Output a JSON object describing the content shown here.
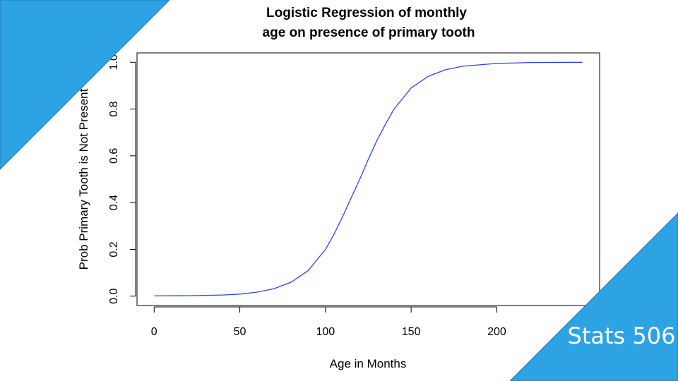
{
  "theme": {
    "accent": "#2ea3e3",
    "accent_border": "#1e78b4",
    "curve_color": "#2a45e6"
  },
  "branding": {
    "course_label": "Stats 506"
  },
  "chart_data": {
    "type": "line",
    "title_lines": [
      "Logistic Regression of monthly",
      "age on presence of primary tooth"
    ],
    "xlabel": "Age in Months",
    "ylabel": "Prob Primary Tooth is Not Present",
    "xlim": [
      -10,
      260
    ],
    "ylim": [
      -0.04,
      1.04
    ],
    "x_ticks": [
      0,
      50,
      100,
      150,
      200
    ],
    "x_tick_labels": [
      "0",
      "50",
      "100",
      "150",
      "200"
    ],
    "y_ticks": [
      0.0,
      0.2,
      0.4,
      0.6,
      0.8,
      1.0
    ],
    "y_tick_labels": [
      "0.0",
      "0.2",
      "0.4",
      "0.6",
      "0.8",
      "1.0"
    ],
    "grid": false,
    "series": [
      {
        "color": "#2a45e6",
        "x": [
          0,
          20,
          40,
          50,
          60,
          70,
          80,
          90,
          100,
          105,
          110,
          115,
          120,
          125,
          130,
          135,
          140,
          150,
          160,
          170,
          180,
          200,
          220,
          250
        ],
        "y": [
          0.001,
          0.002,
          0.005,
          0.009,
          0.017,
          0.032,
          0.06,
          0.11,
          0.2,
          0.265,
          0.34,
          0.42,
          0.5,
          0.585,
          0.665,
          0.735,
          0.8,
          0.89,
          0.94,
          0.968,
          0.983,
          0.995,
          0.999,
          1.0
        ]
      }
    ]
  }
}
